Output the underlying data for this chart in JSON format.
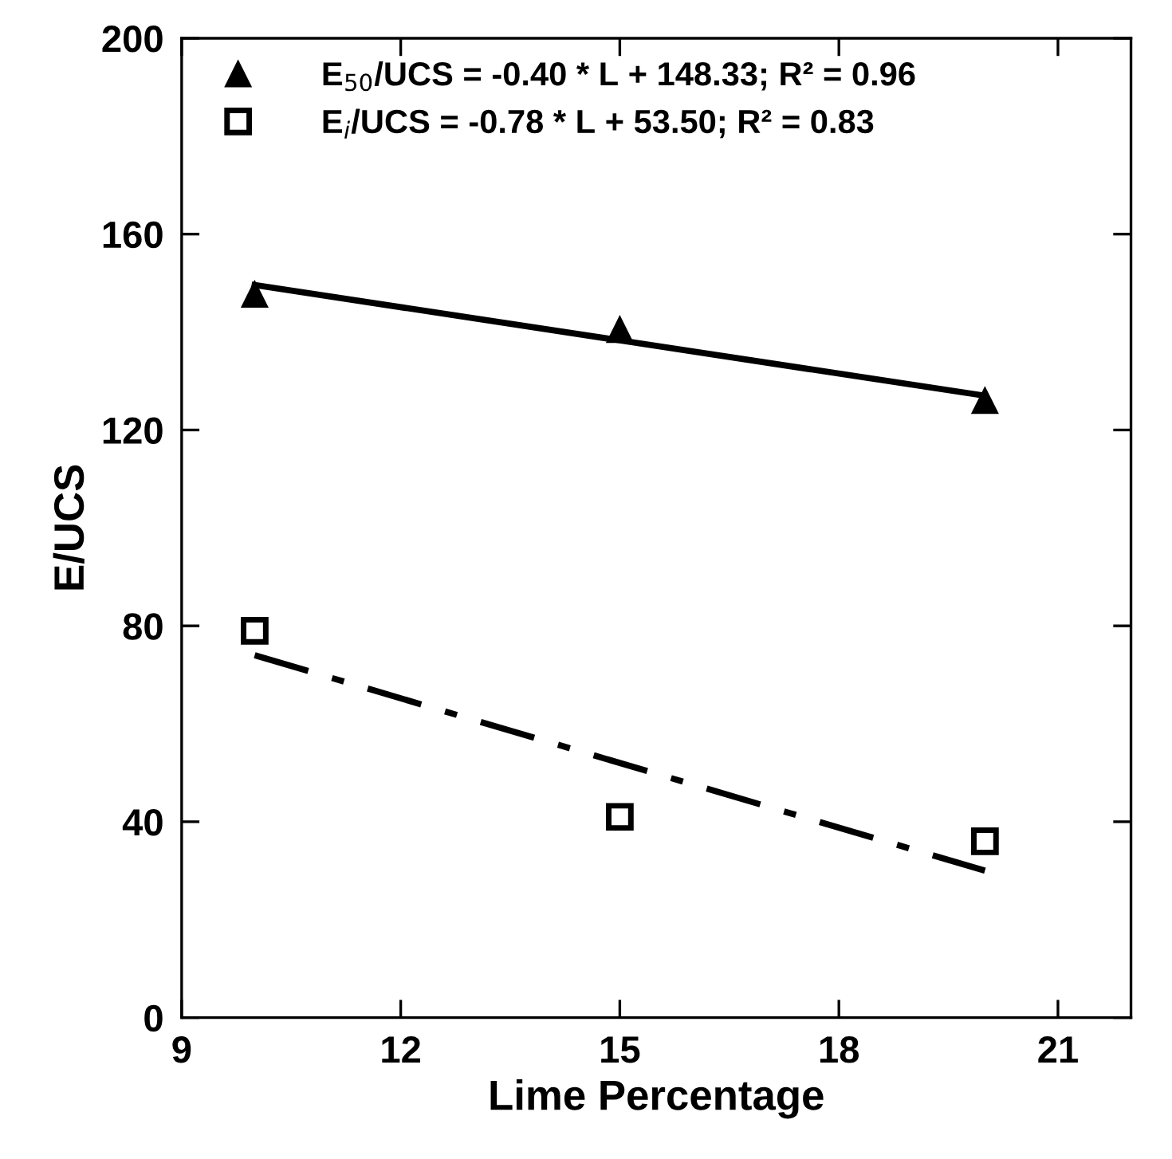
{
  "chart_data": {
    "type": "scatter",
    "xlabel": "Lime Percentage",
    "ylabel": "E/UCS",
    "xlim": [
      9,
      22
    ],
    "xticks": [
      9,
      12,
      15,
      18,
      21
    ],
    "ylim": [
      0,
      200
    ],
    "yticks": [
      0,
      40,
      80,
      120,
      160,
      200
    ],
    "grid": false,
    "legend": "top left",
    "series": [
      {
        "name": "E$_{50}$/UCS = -0.40 * L + 148.33; R² = 0.96",
        "marker": "triangle",
        "color": "#000000",
        "x": [
          10,
          15,
          20
        ],
        "values": [
          147.7,
          140.5,
          126
        ]
      },
      {
        "name": "E$_{i}$/UCS = -0.78 * L + 53.50; R² = 0.83",
        "marker": "square",
        "color": "#000000",
        "x": [
          10,
          15,
          20
        ],
        "values": [
          79,
          41,
          36
        ]
      },
      {
        "type": "line",
        "line_style": "solid",
        "marker": "none",
        "color": "#000000",
        "x": [
          10,
          20
        ],
        "values": [
          149.6,
          127
        ]
      },
      {
        "type": "line",
        "line_style": "dashdot",
        "marker": "none",
        "color": "#000000",
        "x": [
          10,
          20
        ],
        "values": [
          74,
          30
        ]
      }
    ]
  }
}
